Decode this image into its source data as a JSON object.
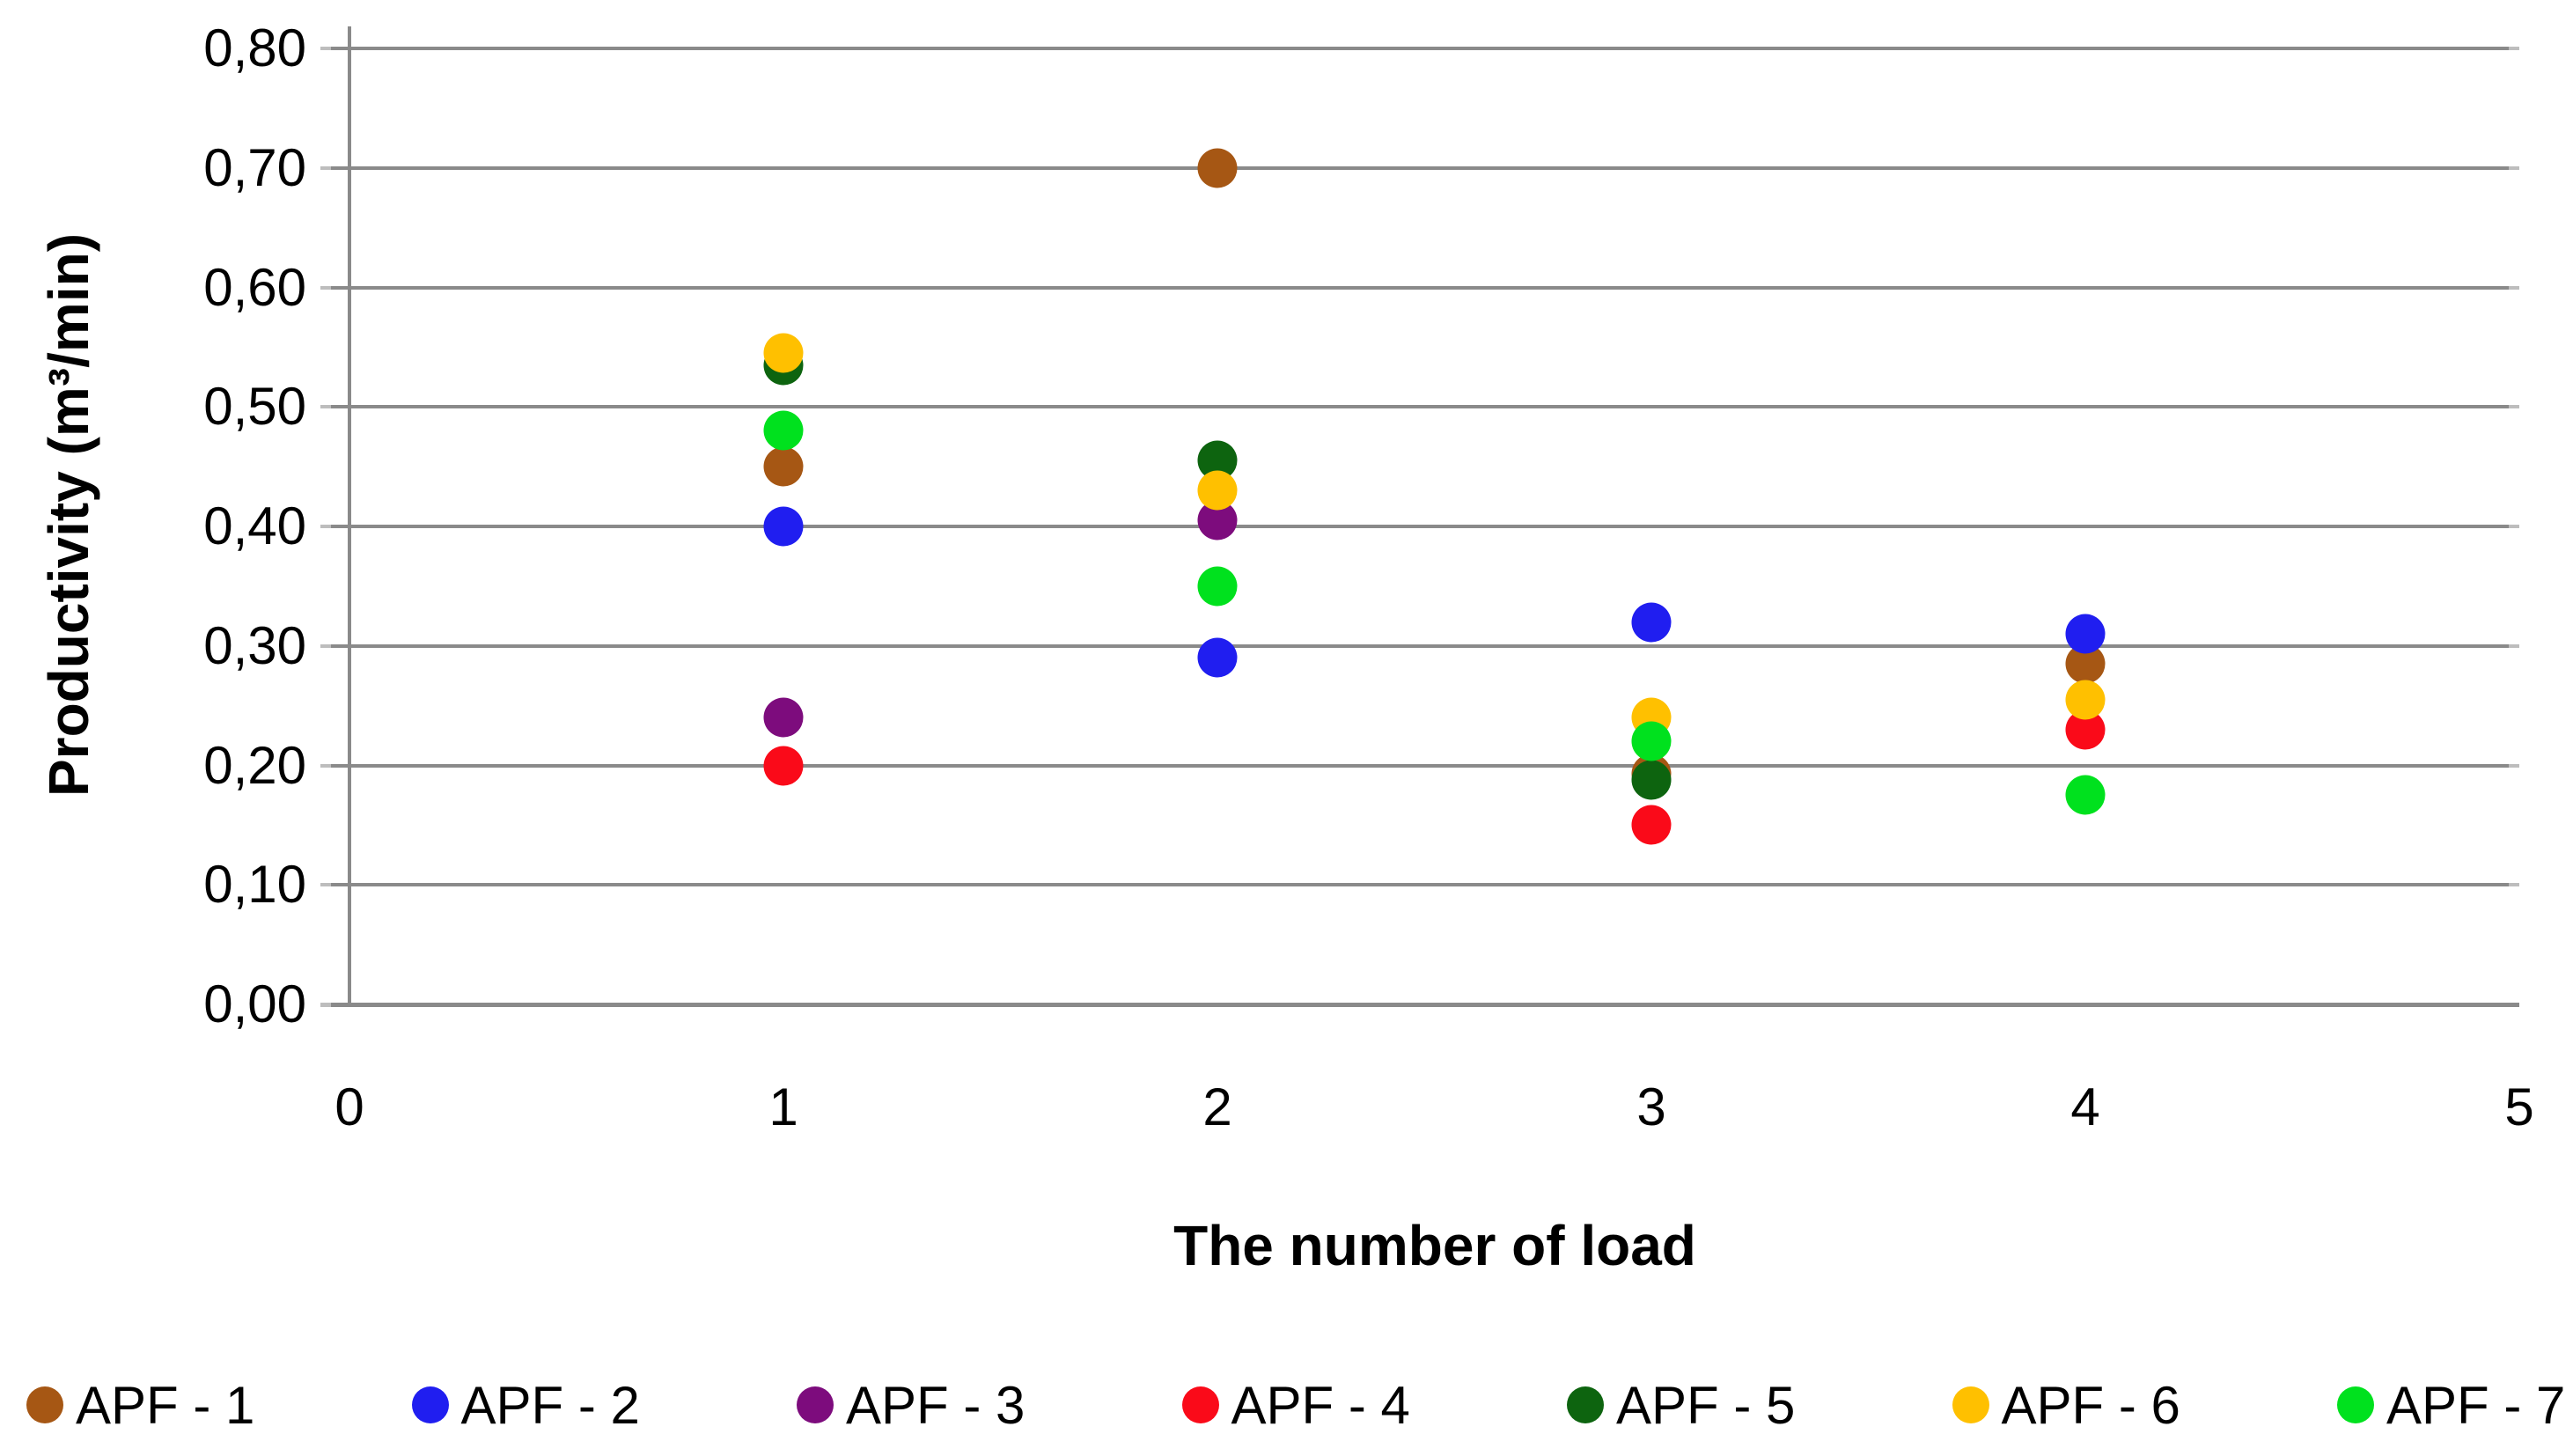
{
  "chart_data": {
    "type": "scatter",
    "xlabel": "The number of load",
    "ylabel": "Productivity (m³/min)",
    "xlim": [
      0,
      5
    ],
    "ylim": [
      0,
      0.8
    ],
    "x_ticks": [
      {
        "value": 0,
        "label": "0"
      },
      {
        "value": 1,
        "label": "1"
      },
      {
        "value": 2,
        "label": "2"
      },
      {
        "value": 3,
        "label": "3"
      },
      {
        "value": 4,
        "label": "4"
      },
      {
        "value": 5,
        "label": "5"
      }
    ],
    "y_ticks": [
      {
        "value": 0.0,
        "label": "0,00"
      },
      {
        "value": 0.1,
        "label": "0,10"
      },
      {
        "value": 0.2,
        "label": "0,20"
      },
      {
        "value": 0.3,
        "label": "0,30"
      },
      {
        "value": 0.4,
        "label": "0,40"
      },
      {
        "value": 0.5,
        "label": "0,50"
      },
      {
        "value": 0.6,
        "label": "0,60"
      },
      {
        "value": 0.7,
        "label": "0,70"
      },
      {
        "value": 0.8,
        "label": "0,80"
      }
    ],
    "grid": "horizontal",
    "legend_position": "bottom",
    "series": [
      {
        "name": "APF - 1",
        "color": "#A65714",
        "points": [
          [
            1,
            0.45
          ],
          [
            2,
            0.7
          ],
          [
            3,
            0.193
          ],
          [
            4,
            0.285
          ]
        ]
      },
      {
        "name": "APF - 2",
        "color": "#201EF0",
        "points": [
          [
            1,
            0.4
          ],
          [
            2,
            0.29
          ],
          [
            3,
            0.32
          ],
          [
            4,
            0.31
          ]
        ]
      },
      {
        "name": "APF - 3",
        "color": "#7D0C7D",
        "points": [
          [
            1,
            0.24
          ],
          [
            2,
            0.405
          ]
        ]
      },
      {
        "name": "APF - 4",
        "color": "#FA0A19",
        "points": [
          [
            1,
            0.2
          ],
          [
            3,
            0.15
          ],
          [
            4,
            0.23
          ]
        ]
      },
      {
        "name": "APF - 5",
        "color": "#0D640F",
        "points": [
          [
            1,
            0.535
          ],
          [
            2,
            0.455
          ],
          [
            3,
            0.188
          ]
        ]
      },
      {
        "name": "APF - 6",
        "color": "#FFC000",
        "points": [
          [
            1,
            0.545
          ],
          [
            2,
            0.43
          ],
          [
            3,
            0.24
          ],
          [
            4,
            0.255
          ]
        ]
      },
      {
        "name": "APF - 7",
        "color": "#00E11E",
        "points": [
          [
            1,
            0.48
          ],
          [
            2,
            0.35
          ],
          [
            3,
            0.22
          ],
          [
            4,
            0.175
          ]
        ]
      }
    ]
  },
  "colors": {
    "gridline": "#8A8A8A",
    "axis": "#8A8A8A",
    "text": "#000000",
    "background": "#FFFFFF"
  }
}
